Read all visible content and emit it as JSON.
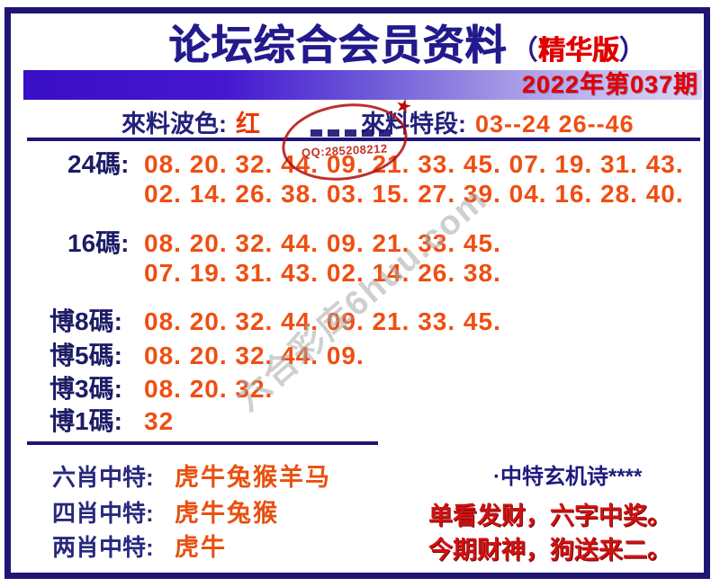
{
  "title": {
    "main": "论坛综合会员资料",
    "paren_open": "（",
    "edition": "精华版",
    "paren_close": "）"
  },
  "issue_label": "2022年第037期",
  "info_row": {
    "wave_label": "來料波色:",
    "wave_value": "红",
    "segment_label": "來料特段:",
    "segment_value": "03--24  26--46"
  },
  "stamp": {
    "qq_text": "QQ:285208212",
    "star": "★"
  },
  "code_rows": [
    {
      "label": "24碼:",
      "lines": [
        "08. 20. 32. 44. 09. 21. 33. 45. 07. 19. 31. 43.",
        "02. 14. 26. 38. 03. 15. 27. 39. 04. 16. 28. 40."
      ]
    },
    {
      "label": "16碼:",
      "lines": [
        "08. 20. 32. 44. 09. 21. 33. 45.",
        "07. 19. 31. 43. 02. 14. 26. 38."
      ]
    },
    {
      "label": "博8碼:",
      "lines": [
        "08. 20. 32. 44. 09. 21. 33. 45."
      ]
    },
    {
      "label": "博5碼:",
      "lines": [
        "08. 20. 32. 44. 09."
      ]
    },
    {
      "label": "博3碼:",
      "lines": [
        "08. 20. 32."
      ]
    },
    {
      "label": "博1碼:",
      "lines": [
        "32"
      ]
    }
  ],
  "zodiac_rows": [
    {
      "label": "六肖中特:",
      "value": "虎牛兔猴羊马"
    },
    {
      "label": "四肖中特:",
      "value": "虎牛兔猴"
    },
    {
      "label": "两肖中特:",
      "value": "虎牛"
    }
  ],
  "poem": {
    "title": "·中特玄机诗****",
    "lines": [
      "单看发财，六字中奖。",
      "今期财神，狗送来二。"
    ]
  },
  "watermark": "六合彩库6huu.com",
  "colors": {
    "navy": "#231a8c",
    "orange": "#ee4f12",
    "red": "#e00000",
    "banner_left": "#3a0fc6",
    "banner_right": "#d8d2f5"
  }
}
